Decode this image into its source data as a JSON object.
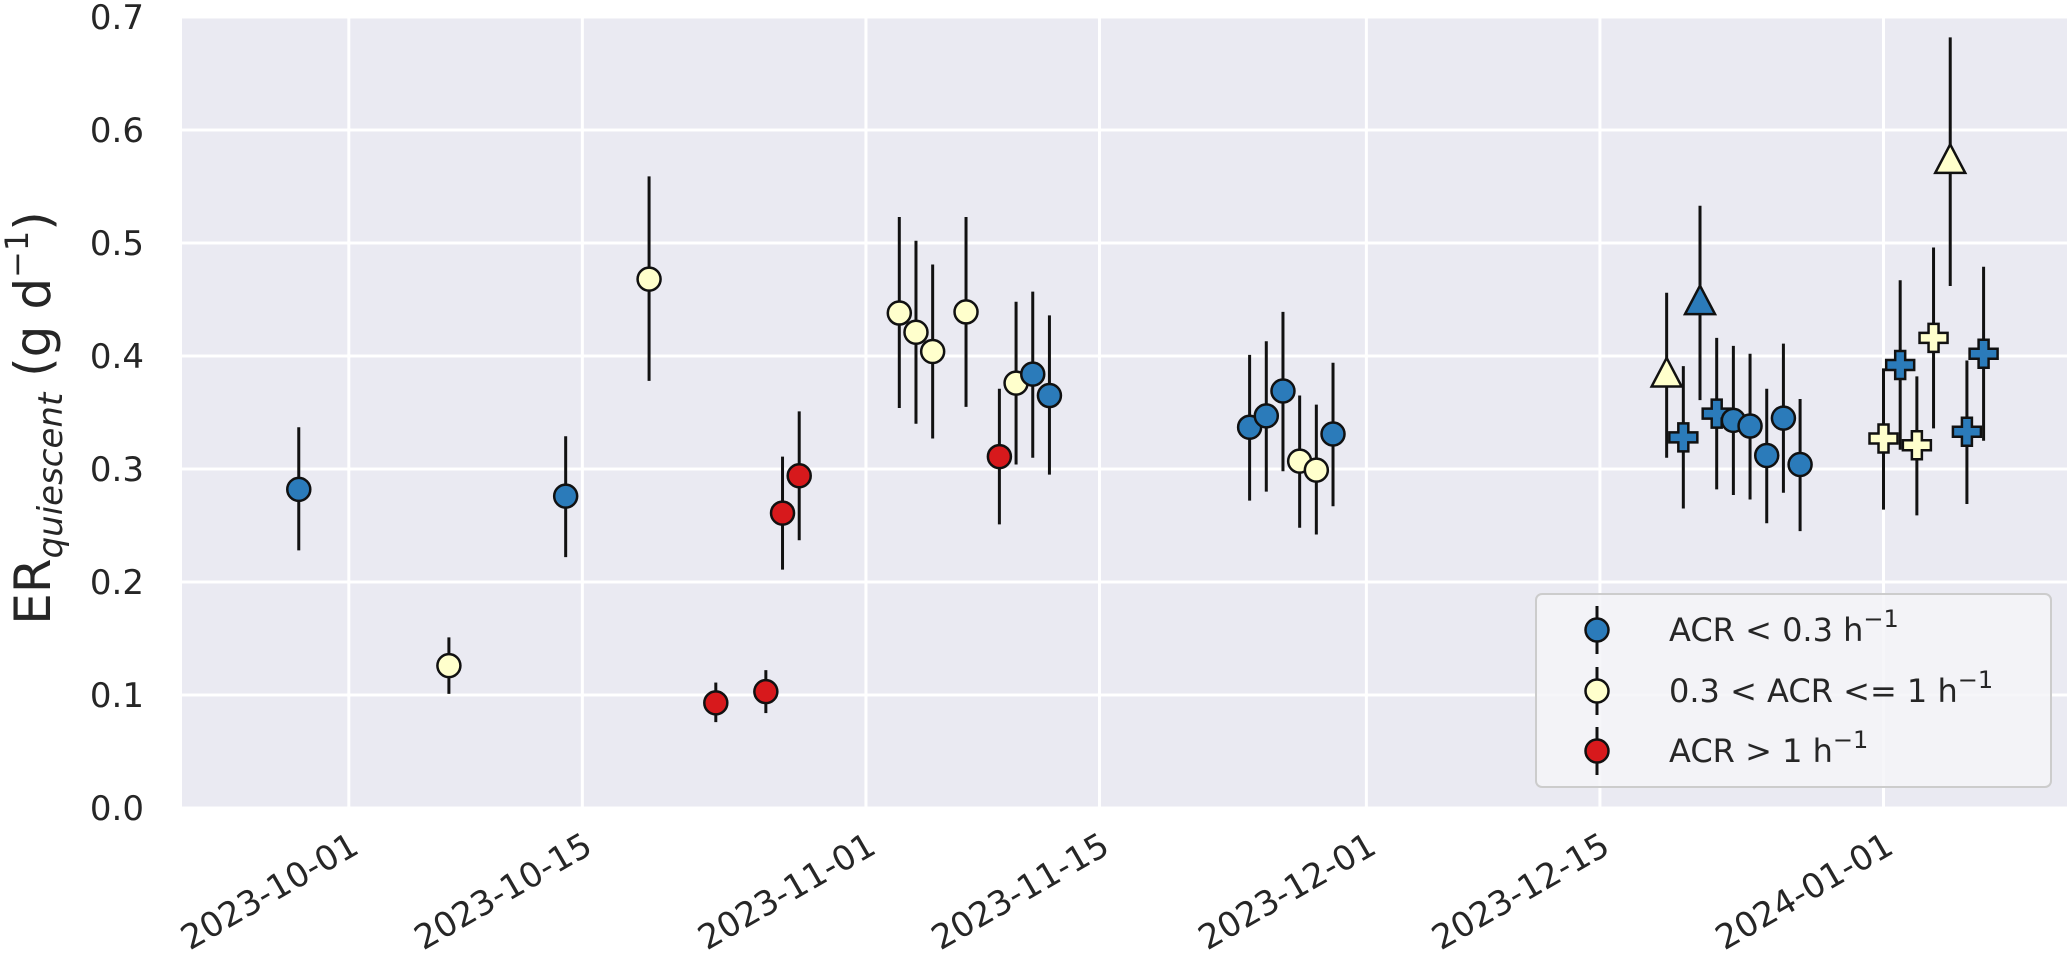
{
  "chart_data": {
    "type": "scatter",
    "title": "",
    "xlabel": "",
    "ylabel": {
      "main": "ER",
      "subscript": "quiescent",
      "units_prefix": " (g d",
      "units_exponent": "−1",
      "units_suffix": ")"
    },
    "x_range": [
      "2023-09-21",
      "2024-01-12"
    ],
    "ylim": [
      0.0,
      0.7
    ],
    "grid": true,
    "background_color": "#eaeaf2",
    "x_ticks": [
      "2023-10-01",
      "2023-10-15",
      "2023-11-01",
      "2023-11-15",
      "2023-12-01",
      "2023-12-15",
      "2024-01-01"
    ],
    "y_ticks": [
      "0.0",
      "0.1",
      "0.2",
      "0.3",
      "0.4",
      "0.5",
      "0.6",
      "0.7"
    ],
    "legend": {
      "placement": "lower-right",
      "entries": [
        {
          "text": "ACR < 0.3 h",
          "exponent": "−1",
          "color": "#2b7bba"
        },
        {
          "text": "0.3 < ACR <= 1 h",
          "exponent": "−1",
          "color": "#ffffcc"
        },
        {
          "text": "ACR > 1 h",
          "exponent": "−1",
          "color": "#d7191c"
        }
      ]
    },
    "categories": {
      "low": {
        "color": "#2b7bba"
      },
      "mid": {
        "color": "#ffffcc"
      },
      "high": {
        "color": "#d7191c"
      }
    },
    "points": [
      {
        "x": "2023-09-28",
        "y": 0.282,
        "lo": 0.228,
        "hi": 0.337,
        "cat": "low",
        "marker": "circle"
      },
      {
        "x": "2023-10-07",
        "y": 0.126,
        "lo": 0.101,
        "hi": 0.151,
        "cat": "mid",
        "marker": "circle"
      },
      {
        "x": "2023-10-14",
        "y": 0.276,
        "lo": 0.222,
        "hi": 0.329,
        "cat": "low",
        "marker": "circle"
      },
      {
        "x": "2023-10-19",
        "y": 0.468,
        "lo": 0.378,
        "hi": 0.559,
        "cat": "mid",
        "marker": "circle"
      },
      {
        "x": "2023-10-23",
        "y": 0.093,
        "lo": 0.076,
        "hi": 0.111,
        "cat": "high",
        "marker": "circle"
      },
      {
        "x": "2023-10-26",
        "y": 0.103,
        "lo": 0.084,
        "hi": 0.122,
        "cat": "high",
        "marker": "circle"
      },
      {
        "x": "2023-10-27",
        "y": 0.261,
        "lo": 0.211,
        "hi": 0.311,
        "cat": "high",
        "marker": "circle"
      },
      {
        "x": "2023-10-28",
        "y": 0.294,
        "lo": 0.237,
        "hi": 0.351,
        "cat": "high",
        "marker": "circle"
      },
      {
        "x": "2023-11-03",
        "y": 0.438,
        "lo": 0.354,
        "hi": 0.523,
        "cat": "mid",
        "marker": "circle"
      },
      {
        "x": "2023-11-04",
        "y": 0.421,
        "lo": 0.34,
        "hi": 0.502,
        "cat": "mid",
        "marker": "circle"
      },
      {
        "x": "2023-11-05",
        "y": 0.404,
        "lo": 0.327,
        "hi": 0.481,
        "cat": "mid",
        "marker": "circle"
      },
      {
        "x": "2023-11-07",
        "y": 0.439,
        "lo": 0.355,
        "hi": 0.523,
        "cat": "mid",
        "marker": "circle"
      },
      {
        "x": "2023-11-09",
        "y": 0.311,
        "lo": 0.251,
        "hi": 0.371,
        "cat": "high",
        "marker": "circle"
      },
      {
        "x": "2023-11-10",
        "y": 0.376,
        "lo": 0.304,
        "hi": 0.448,
        "cat": "mid",
        "marker": "circle"
      },
      {
        "x": "2023-11-11",
        "y": 0.384,
        "lo": 0.31,
        "hi": 0.457,
        "cat": "low",
        "marker": "circle"
      },
      {
        "x": "2023-11-12",
        "y": 0.365,
        "lo": 0.295,
        "hi": 0.436,
        "cat": "low",
        "marker": "circle"
      },
      {
        "x": "2023-11-24",
        "y": 0.337,
        "lo": 0.272,
        "hi": 0.401,
        "cat": "low",
        "marker": "circle"
      },
      {
        "x": "2023-11-25",
        "y": 0.347,
        "lo": 0.28,
        "hi": 0.413,
        "cat": "low",
        "marker": "circle"
      },
      {
        "x": "2023-11-26",
        "y": 0.369,
        "lo": 0.298,
        "hi": 0.439,
        "cat": "low",
        "marker": "circle"
      },
      {
        "x": "2023-11-27",
        "y": 0.307,
        "lo": 0.248,
        "hi": 0.365,
        "cat": "mid",
        "marker": "circle"
      },
      {
        "x": "2023-11-28",
        "y": 0.299,
        "lo": 0.242,
        "hi": 0.357,
        "cat": "mid",
        "marker": "circle"
      },
      {
        "x": "2023-11-29",
        "y": 0.331,
        "lo": 0.267,
        "hi": 0.394,
        "cat": "low",
        "marker": "circle"
      },
      {
        "x": "2023-12-19",
        "y": 0.383,
        "lo": 0.31,
        "hi": 0.456,
        "cat": "mid",
        "marker": "triangle"
      },
      {
        "x": "2023-12-20",
        "y": 0.328,
        "lo": 0.265,
        "hi": 0.391,
        "cat": "low",
        "marker": "plus"
      },
      {
        "x": "2023-12-21",
        "y": 0.447,
        "lo": 0.361,
        "hi": 0.533,
        "cat": "low",
        "marker": "triangle"
      },
      {
        "x": "2023-12-22",
        "y": 0.349,
        "lo": 0.282,
        "hi": 0.416,
        "cat": "low",
        "marker": "plus"
      },
      {
        "x": "2023-12-23",
        "y": 0.343,
        "lo": 0.277,
        "hi": 0.409,
        "cat": "low",
        "marker": "circle"
      },
      {
        "x": "2023-12-24",
        "y": 0.338,
        "lo": 0.273,
        "hi": 0.402,
        "cat": "low",
        "marker": "circle"
      },
      {
        "x": "2023-12-25",
        "y": 0.312,
        "lo": 0.252,
        "hi": 0.371,
        "cat": "low",
        "marker": "circle"
      },
      {
        "x": "2023-12-26",
        "y": 0.345,
        "lo": 0.279,
        "hi": 0.411,
        "cat": "low",
        "marker": "circle"
      },
      {
        "x": "2023-12-27",
        "y": 0.304,
        "lo": 0.245,
        "hi": 0.362,
        "cat": "low",
        "marker": "circle"
      },
      {
        "x": "2024-01-01",
        "y": 0.327,
        "lo": 0.264,
        "hi": 0.389,
        "cat": "mid",
        "marker": "plus"
      },
      {
        "x": "2024-01-02",
        "y": 0.392,
        "lo": 0.317,
        "hi": 0.467,
        "cat": "low",
        "marker": "plus"
      },
      {
        "x": "2024-01-03",
        "y": 0.321,
        "lo": 0.259,
        "hi": 0.382,
        "cat": "mid",
        "marker": "plus"
      },
      {
        "x": "2024-01-04",
        "y": 0.416,
        "lo": 0.336,
        "hi": 0.496,
        "cat": "mid",
        "marker": "plus"
      },
      {
        "x": "2024-01-05",
        "y": 0.572,
        "lo": 0.462,
        "hi": 0.682,
        "cat": "mid",
        "marker": "triangle"
      },
      {
        "x": "2024-01-06",
        "y": 0.333,
        "lo": 0.269,
        "hi": 0.396,
        "cat": "low",
        "marker": "plus"
      },
      {
        "x": "2024-01-07",
        "y": 0.402,
        "lo": 0.325,
        "hi": 0.479,
        "cat": "low",
        "marker": "plus"
      }
    ]
  }
}
